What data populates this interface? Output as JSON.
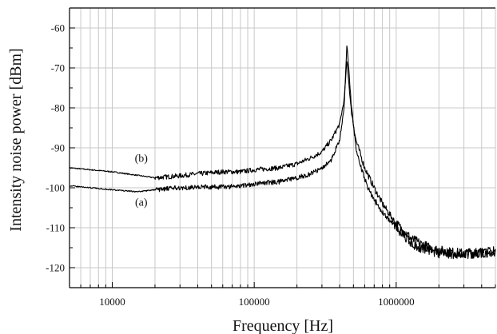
{
  "chart_data": {
    "type": "line",
    "xlabel": "Frequency [Hz]",
    "ylabel": "Intensity noise power [dBm]",
    "x_scale": "log",
    "xlim": [
      5000,
      5000000
    ],
    "ylim": [
      -125,
      -55
    ],
    "grid": true,
    "xticks": [
      {
        "value": 10000,
        "label": "10000"
      },
      {
        "value": 100000,
        "label": "100000"
      },
      {
        "value": 1000000,
        "label": "1000000"
      }
    ],
    "yticks": [
      {
        "value": -60,
        "label": "-60"
      },
      {
        "value": -70,
        "label": "-70"
      },
      {
        "value": -80,
        "label": "-80"
      },
      {
        "value": -90,
        "label": "-90"
      },
      {
        "value": -100,
        "label": "-100"
      },
      {
        "value": -110,
        "label": "-110"
      },
      {
        "value": -120,
        "label": "-120"
      }
    ],
    "series": [
      {
        "name": "(b)",
        "x": [
          5000,
          10000,
          20000,
          30000,
          40000,
          60000,
          80000,
          100000,
          150000,
          200000,
          250000,
          300000,
          350000,
          400000,
          430000,
          450000,
          480000,
          520000,
          600000,
          700000,
          800000,
          1000000,
          1300000,
          1700000,
          2200000,
          3000000,
          5000000
        ],
        "y": [
          -95,
          -96,
          -97.5,
          -97,
          -96.5,
          -96,
          -96,
          -95.5,
          -95,
          -94,
          -92.5,
          -91,
          -88,
          -84,
          -78,
          -68,
          -80,
          -88,
          -95,
          -100,
          -104,
          -109,
          -113,
          -115,
          -116,
          -116.5,
          -116
        ]
      },
      {
        "name": "(a)",
        "x": [
          5000,
          10000,
          15000,
          20000,
          30000,
          40000,
          60000,
          80000,
          100000,
          150000,
          200000,
          250000,
          300000,
          350000,
          400000,
          430000,
          450000,
          480000,
          520000,
          600000,
          700000,
          800000,
          1000000,
          1300000,
          1700000,
          2200000,
          3000000,
          5000000
        ],
        "y": [
          -99.5,
          -100.5,
          -101,
          -100.5,
          -100,
          -99.8,
          -99.8,
          -99.5,
          -99,
          -98.5,
          -97.5,
          -96.5,
          -95,
          -93,
          -88,
          -80,
          -64,
          -78,
          -90,
          -98,
          -103,
          -106,
          -110,
          -114,
          -116,
          -116.5,
          -116.5,
          -116
        ]
      }
    ],
    "annotations": [
      {
        "text": "(b)",
        "x": 16000,
        "y": -93.5
      },
      {
        "text": "(a)",
        "x": 16000,
        "y": -104.5
      }
    ]
  }
}
